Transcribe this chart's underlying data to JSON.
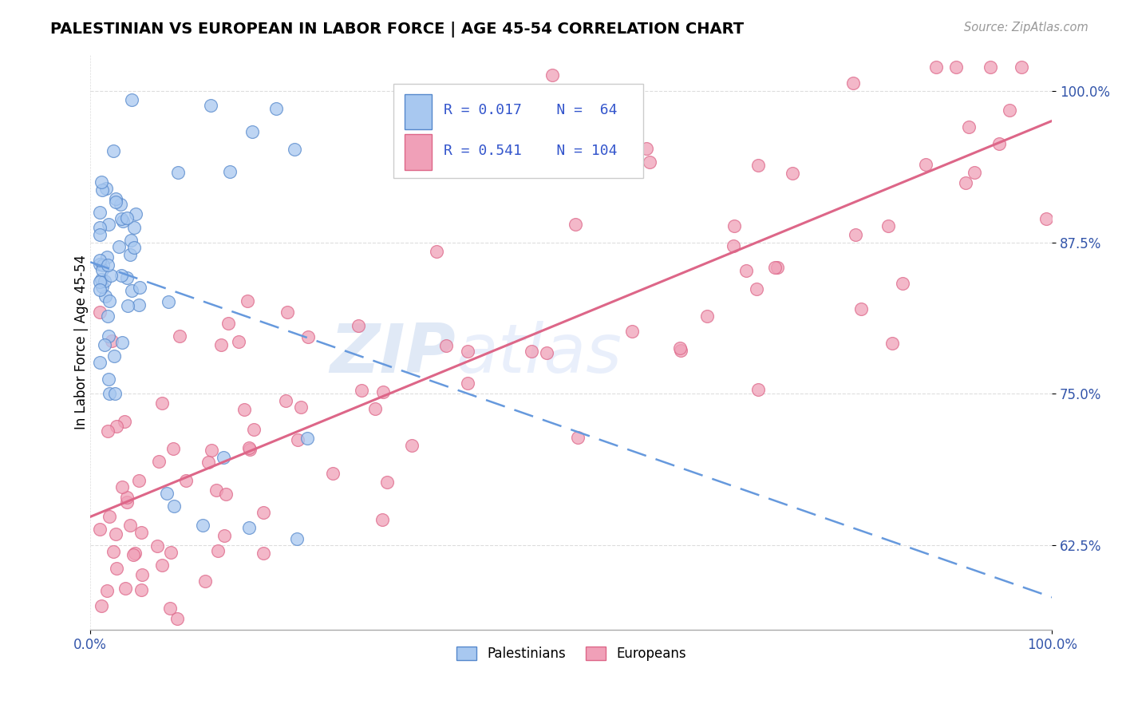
{
  "title": "PALESTINIAN VS EUROPEAN IN LABOR FORCE | AGE 45-54 CORRELATION CHART",
  "source": "Source: ZipAtlas.com",
  "ylabel": "In Labor Force | Age 45-54",
  "xlim": [
    0.0,
    1.0
  ],
  "ylim": [
    0.555,
    1.03
  ],
  "ytick_positions": [
    0.625,
    0.75,
    0.875,
    1.0
  ],
  "ytick_labels": [
    "62.5%",
    "75.0%",
    "87.5%",
    "100.0%"
  ],
  "background_color": "#ffffff",
  "grid_color": "#dddddd",
  "blue_fill": "#a8c8f0",
  "blue_edge": "#5588cc",
  "pink_fill": "#f0a0b8",
  "pink_edge": "#dd6688",
  "blue_line_color": "#6699dd",
  "pink_line_color": "#dd5577",
  "legend_R_blue": "0.017",
  "legend_N_blue": "64",
  "legend_R_pink": "0.541",
  "legend_N_pink": "104",
  "watermark_zip": "ZIP",
  "watermark_atlas": "atlas"
}
